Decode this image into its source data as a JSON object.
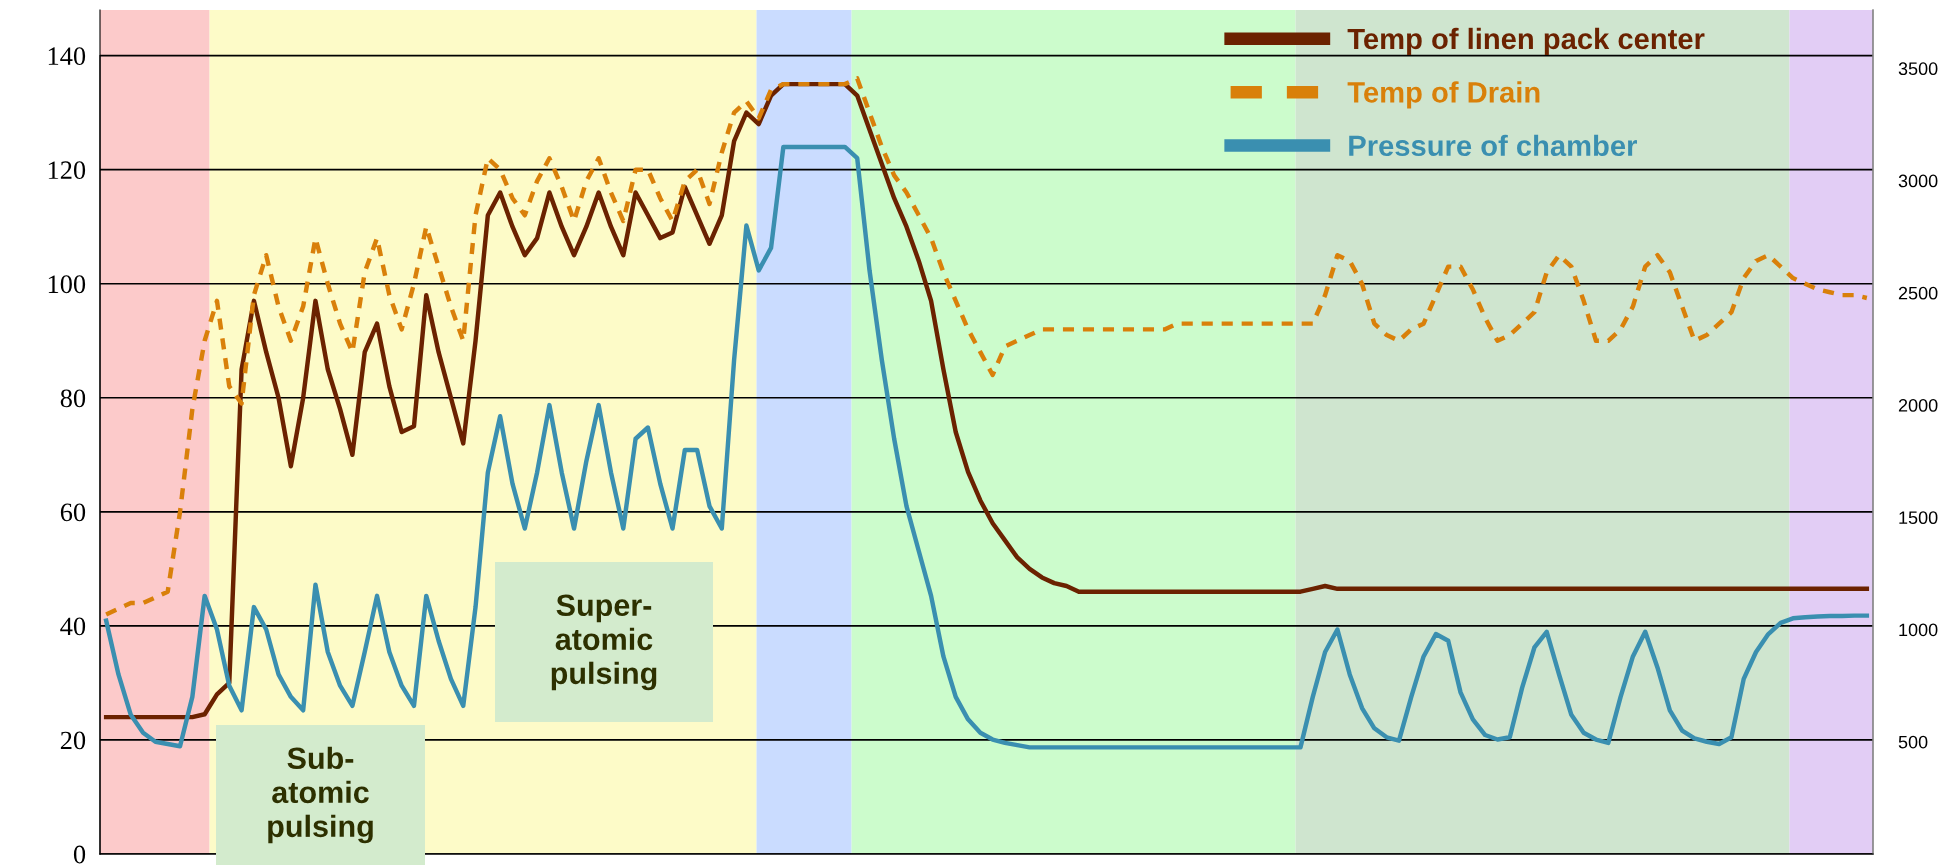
{
  "chart_data": {
    "type": "line",
    "categories": [
      null,
      null,
      null,
      null,
      null,
      null,
      null,
      null,
      null,
      null,
      null,
      null,
      null,
      null,
      null,
      null,
      null,
      null,
      null,
      null,
      null,
      null,
      null,
      null,
      null,
      null,
      null,
      null,
      null,
      null,
      null,
      null,
      null,
      null,
      null,
      null,
      null,
      null,
      null,
      null,
      null,
      null,
      null,
      null,
      null,
      null,
      null,
      null,
      null,
      null,
      null,
      null,
      null,
      null,
      null,
      null,
      null,
      null,
      null,
      null,
      null,
      null,
      null,
      null,
      null,
      null,
      null,
      null,
      null,
      null,
      null,
      null,
      null,
      null,
      null,
      null,
      null,
      null,
      null,
      null,
      null,
      null,
      null,
      null,
      null,
      null,
      null,
      null,
      null,
      null,
      null,
      null,
      null,
      null,
      null,
      null,
      null,
      null,
      null,
      null,
      null,
      null,
      null,
      null,
      null,
      null,
      null,
      null,
      null,
      null,
      null,
      null,
      null,
      null,
      null,
      null,
      null,
      null,
      null,
      null,
      null,
      null,
      null,
      null,
      null,
      null,
      null,
      null,
      null,
      null,
      null,
      null,
      null,
      null,
      null,
      null,
      null,
      null,
      null,
      null,
      null,
      null,
      null,
      null
    ],
    "series": [
      {
        "name": "Temp of linen pack center",
        "color": "#6b2200",
        "line_style": "solid",
        "values": [
          24,
          24,
          24,
          24,
          24,
          24,
          24,
          24,
          24.5,
          28,
          30,
          85,
          97,
          88,
          80,
          68,
          80,
          97,
          85,
          78,
          70,
          88,
          93,
          82,
          74,
          75,
          98,
          88,
          80,
          72,
          90,
          112,
          116,
          110,
          105,
          108,
          116,
          110,
          105,
          110,
          116,
          110,
          105,
          116,
          112,
          108,
          109,
          117,
          112,
          107,
          112,
          125,
          130,
          128,
          133,
          135,
          135,
          135,
          135,
          135,
          135,
          133,
          127,
          121,
          115,
          110,
          104,
          97,
          85,
          74,
          67,
          62,
          58,
          55,
          52,
          50,
          48.5,
          47.5,
          47,
          46,
          46,
          46,
          46,
          46,
          46,
          46,
          46,
          46,
          46,
          46,
          46,
          46,
          46,
          46,
          46,
          46,
          46,
          46,
          46.5,
          47,
          46.5,
          46.5,
          46.5,
          46.5,
          46.5,
          46.5,
          46.5,
          46.5,
          46.5,
          46.5,
          46.5,
          46.5,
          46.5,
          46.5,
          46.5,
          46.5,
          46.5,
          46.5,
          46.5,
          46.5,
          46.5,
          46.5,
          46.5,
          46.5,
          46.5,
          46.5,
          46.5,
          46.5,
          46.5,
          46.5,
          46.5,
          46.5,
          46.5,
          46.5,
          46.5,
          46.5,
          46.5,
          46.5,
          46.5,
          46.5,
          46.5,
          46.5,
          46.5,
          46.5
        ]
      },
      {
        "name": "Temp of Drain",
        "color": "#d9800a",
        "line_style": "dashed",
        "values": [
          42,
          43,
          44,
          44,
          45,
          46,
          60,
          78,
          90,
          97,
          82,
          79,
          98,
          105,
          96,
          90,
          96,
          108,
          100,
          93,
          88,
          102,
          108,
          98,
          92,
          100,
          110,
          103,
          96,
          90,
          112,
          122,
          120,
          115,
          112,
          118,
          122,
          117,
          111,
          118,
          122,
          116,
          111,
          120,
          120,
          115,
          111,
          118,
          120,
          114,
          123,
          130,
          132,
          129,
          134,
          135,
          135,
          135,
          135,
          135,
          135,
          136,
          130,
          124,
          119,
          116,
          112,
          108,
          102,
          97,
          92,
          88,
          84,
          89,
          90,
          91,
          92,
          92,
          92,
          92,
          92,
          92,
          92,
          92,
          92,
          92,
          92,
          93,
          93,
          93,
          93,
          93,
          93,
          93,
          93,
          93,
          93,
          93,
          93,
          98,
          105,
          104,
          100,
          93,
          91,
          90,
          92,
          93,
          98,
          103,
          103,
          99,
          94,
          90,
          91,
          93,
          95,
          102,
          105,
          103,
          97,
          90,
          90,
          92,
          96,
          103,
          105,
          102,
          96,
          90,
          91,
          93,
          95,
          101,
          104,
          105,
          103,
          101,
          100,
          99,
          98.5,
          98,
          98,
          97.5
        ]
      },
      {
        "name": "Pressure of chamber",
        "color": "#3a8fb0",
        "line_style": "solid",
        "axis": "y2",
        "values": [
          1040,
          800,
          620,
          540,
          500,
          490,
          480,
          700,
          1150,
          1000,
          750,
          640,
          1100,
          1000,
          800,
          700,
          640,
          1200,
          900,
          750,
          660,
          900,
          1150,
          900,
          750,
          660,
          1150,
          950,
          780,
          660,
          1100,
          1700,
          1950,
          1650,
          1450,
          1700,
          2000,
          1700,
          1450,
          1750,
          2000,
          1700,
          1450,
          1850,
          1900,
          1650,
          1450,
          1800,
          1800,
          1550,
          1450,
          2200,
          2800,
          2600,
          2700,
          3150,
          3150,
          3150,
          3150,
          3150,
          3150,
          3100,
          2600,
          2200,
          1850,
          1550,
          1350,
          1150,
          880,
          700,
          600,
          540,
          510,
          495,
          485,
          475,
          475,
          475,
          475,
          475,
          475,
          475,
          475,
          475,
          475,
          475,
          475,
          475,
          475,
          475,
          475,
          475,
          475,
          475,
          475,
          475,
          475,
          475,
          700,
          900,
          1000,
          800,
          650,
          560,
          520,
          505,
          700,
          880,
          980,
          950,
          720,
          600,
          530,
          510,
          520,
          740,
          920,
          990,
          800,
          620,
          540,
          510,
          495,
          700,
          880,
          990,
          830,
          640,
          550,
          515,
          500,
          490,
          520,
          780,
          900,
          980,
          1030,
          1050,
          1055,
          1058,
          1060,
          1060,
          1062,
          1062
        ]
      }
    ],
    "ylim": [
      0,
      148
    ],
    "yticks": [
      0,
      20,
      40,
      60,
      80,
      100,
      120,
      140
    ],
    "y2lim": [
      0,
      3760
    ],
    "y2ticks": [
      500,
      1000,
      1500,
      2000,
      2500,
      3000,
      3500
    ],
    "grid": "y",
    "legend": "top right",
    "annotations": [
      "Sub-\natomic\npulsing",
      "Super-\natomic\npulsing"
    ]
  }
}
